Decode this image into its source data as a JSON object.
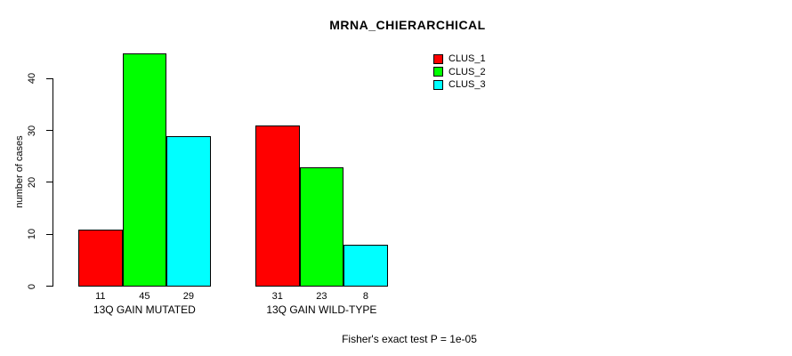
{
  "chart_data": {
    "type": "bar",
    "title": "MRNA_CHIERARCHICAL",
    "ylabel": "number of cases",
    "xlabel": "",
    "categories": [
      "13Q GAIN MUTATED",
      "13Q GAIN WILD-TYPE"
    ],
    "series": [
      {
        "name": "CLUS_1",
        "color": "#FF0000",
        "values": [
          11,
          31
        ]
      },
      {
        "name": "CLUS_2",
        "color": "#00FF00",
        "values": [
          45,
          23
        ]
      },
      {
        "name": "CLUS_3",
        "color": "#00FFFF",
        "values": [
          29,
          8
        ]
      }
    ],
    "yticks": [
      0,
      10,
      20,
      30,
      40
    ],
    "ylim": [
      0,
      45
    ],
    "grid": false,
    "legend_position": "top-right",
    "bar_border_color": "#000000",
    "show_value_labels": true,
    "annotation": "Fisher's exact test P = 1e-05"
  }
}
